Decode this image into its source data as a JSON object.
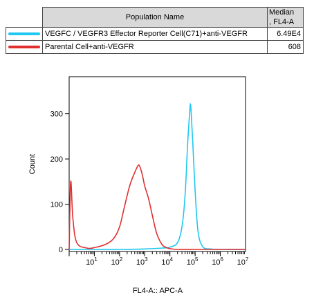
{
  "legend": {
    "header_population": "Population Name",
    "header_median_line1": "Median",
    "header_median_line2": ", FL4-A",
    "rows": [
      {
        "name": "VEGFC / VEGFR3 Effector Reporter Cell(C71)+anti-VEGFR",
        "median": "6.49E4",
        "color": "#1ec8f0"
      },
      {
        "name": "Parental Cell+anti-VEGFR",
        "median": "608",
        "color": "#e03030"
      }
    ]
  },
  "chart_data": {
    "type": "line",
    "xlabel": "FL4-A:: APC-A",
    "ylabel": "Count",
    "x_scale": "log",
    "xlim": [
      1,
      10000000
    ],
    "ylim": [
      0,
      330
    ],
    "y_ticks": [
      0,
      100,
      200,
      300
    ],
    "x_ticks": [
      {
        "base": "10",
        "exp": "1"
      },
      {
        "base": "10",
        "exp": "2"
      },
      {
        "base": "10",
        "exp": "3"
      },
      {
        "base": "10",
        "exp": "4"
      },
      {
        "base": "10",
        "exp": "5"
      },
      {
        "base": "10",
        "exp": "6"
      },
      {
        "base": "10",
        "exp": "7"
      }
    ],
    "series": [
      {
        "name": "VEGFC / VEGFR3 Effector Reporter Cell(C71)+anti-VEGFR",
        "color": "#1ec8f0",
        "x": [
          1,
          10,
          100,
          1000,
          5000,
          10000,
          20000,
          30000,
          40000,
          50000,
          60000,
          65000,
          70000,
          80000,
          100000,
          130000,
          200000,
          400000,
          1000000,
          10000000
        ],
        "y": [
          0,
          0,
          0,
          1,
          3,
          5,
          15,
          50,
          120,
          230,
          300,
          322,
          300,
          240,
          130,
          40,
          6,
          1,
          0,
          0
        ]
      },
      {
        "name": "Parental Cell+anti-VEGFR",
        "color": "#e03030",
        "x": [
          1,
          1.15,
          1.4,
          2,
          5,
          10,
          30,
          60,
          100,
          150,
          250,
          400,
          550,
          650,
          800,
          1000,
          1300,
          1600,
          2000,
          3000,
          5000,
          8000,
          12000,
          20000,
          100000,
          10000000
        ],
        "y": [
          0,
          150,
          70,
          15,
          3,
          4,
          12,
          25,
          50,
          90,
          140,
          170,
          186,
          182,
          165,
          140,
          120,
          100,
          75,
          35,
          10,
          3,
          1,
          0,
          0,
          0
        ]
      }
    ]
  }
}
